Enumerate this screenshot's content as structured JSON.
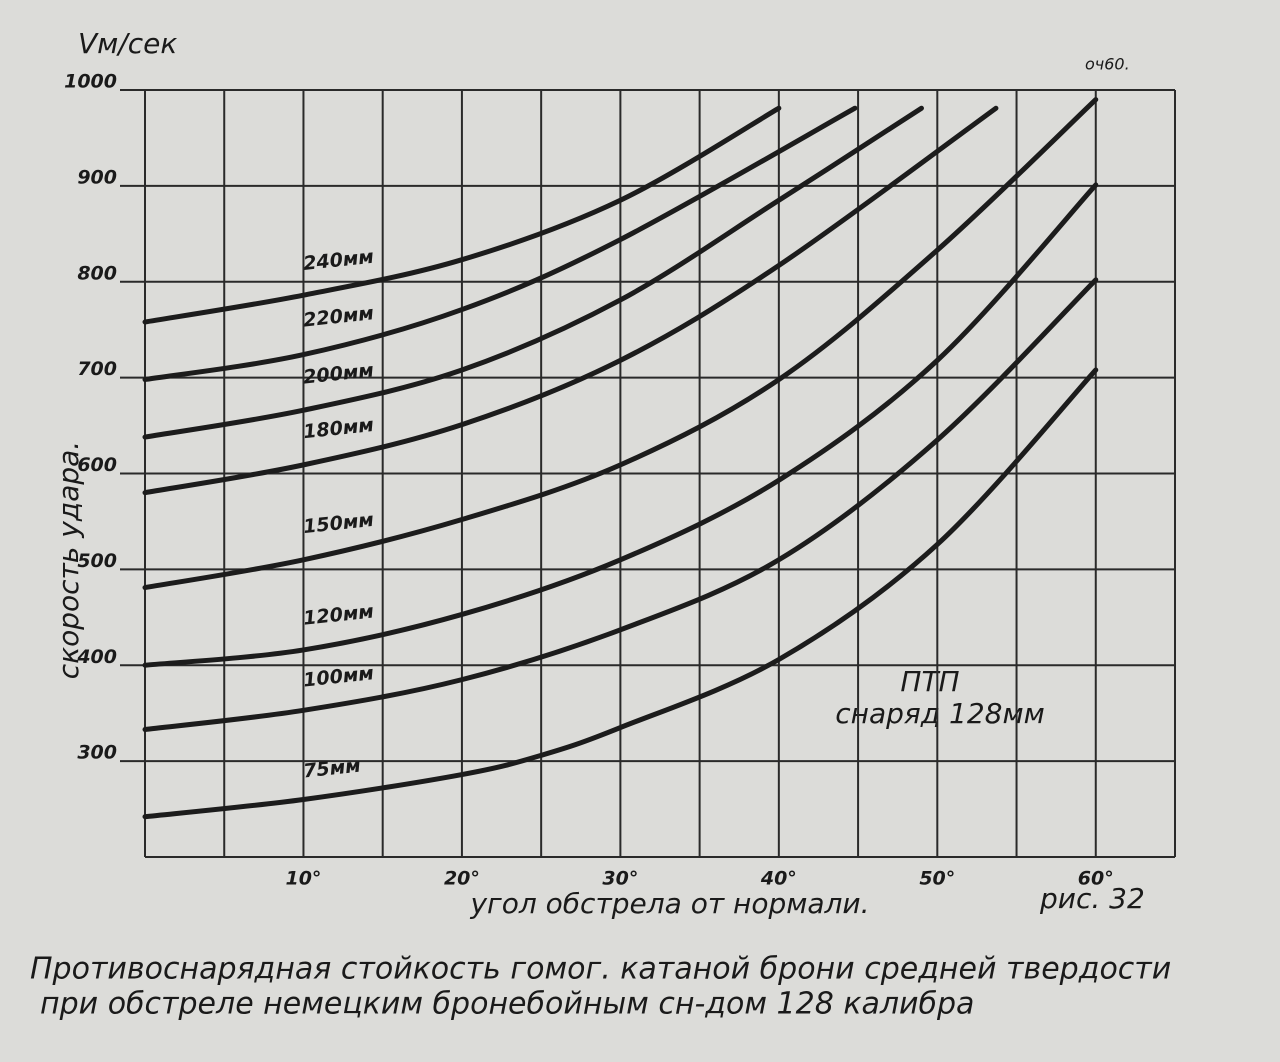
{
  "chart_data": {
    "type": "line",
    "y_axis_label": "Vм/сек",
    "y_axis_title": "скорость удара.",
    "x_axis_label": "угол обстрела от нормали.",
    "figure_label": "рис. 32",
    "corner_note": "оч60.",
    "annotation": [
      "ПТП",
      "снаряд 128мм"
    ],
    "caption": [
      "Противоснарядная стойкость гомог. катаной брони средней твердости",
      "при обстреле немецким бронебойным сн-дом 128 калибра"
    ],
    "xlim": [
      0,
      65
    ],
    "ylim": [
      200,
      1000
    ],
    "xticks": [
      {
        "value": 10,
        "label": "10°"
      },
      {
        "value": 20,
        "label": "20°"
      },
      {
        "value": 30,
        "label": "30°"
      },
      {
        "value": 40,
        "label": "40°"
      },
      {
        "value": 50,
        "label": "50°"
      },
      {
        "value": 60,
        "label": "60°"
      }
    ],
    "x_minor_grid": [
      5,
      15,
      25,
      35,
      45,
      55,
      65
    ],
    "yticks": [
      300,
      400,
      500,
      600,
      700,
      800,
      900,
      1000
    ],
    "grid": true,
    "color": "#1c1c1c",
    "series": [
      {
        "name": "75мм",
        "x": [
          0,
          10,
          20,
          25,
          30,
          40,
          50,
          60
        ],
        "values": [
          242,
          260,
          286,
          306,
          335,
          406,
          526,
          708
        ]
      },
      {
        "name": "100мм",
        "x": [
          0,
          10,
          20,
          30,
          40,
          50,
          60
        ],
        "values": [
          333,
          353,
          385,
          437,
          510,
          635,
          802
        ]
      },
      {
        "name": "120мм",
        "x": [
          0,
          10,
          20,
          30,
          40,
          50,
          60
        ],
        "values": [
          400,
          416,
          453,
          510,
          593,
          718,
          901
        ]
      },
      {
        "name": "150мм",
        "x": [
          0,
          10,
          20,
          30,
          40,
          50,
          60
        ],
        "values": [
          481,
          510,
          552,
          609,
          698,
          833,
          990
        ]
      },
      {
        "name": "180мм",
        "x": [
          0,
          10,
          20,
          30,
          40,
          53.7
        ],
        "values": [
          580,
          609,
          651,
          718,
          817,
          981
        ]
      },
      {
        "name": "200мм",
        "x": [
          0,
          10,
          20,
          30,
          40,
          49
        ],
        "values": [
          638,
          666,
          708,
          781,
          885,
          981
        ]
      },
      {
        "name": "220мм",
        "x": [
          0,
          10,
          20,
          30,
          44.8
        ],
        "values": [
          698,
          724,
          771,
          844,
          981
        ]
      },
      {
        "name": "240мм",
        "x": [
          0,
          10,
          20,
          30,
          40
        ],
        "values": [
          758,
          786,
          823,
          885,
          981
        ]
      }
    ]
  }
}
